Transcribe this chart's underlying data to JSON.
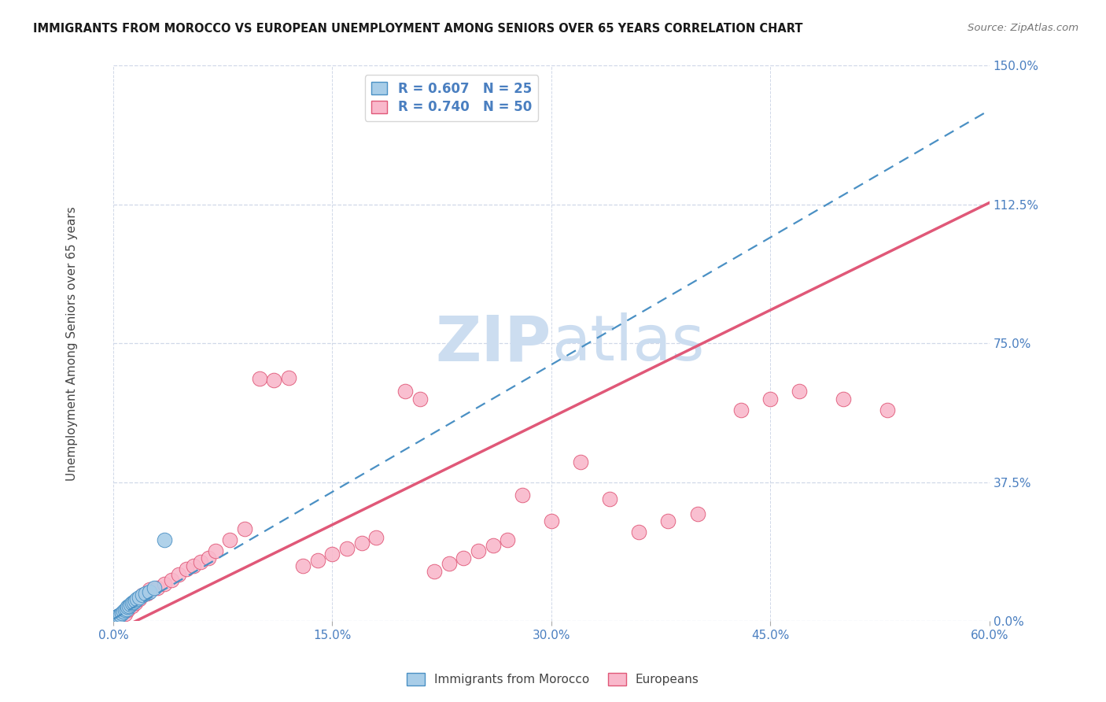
{
  "title": "IMMIGRANTS FROM MOROCCO VS EUROPEAN UNEMPLOYMENT AMONG SENIORS OVER 65 YEARS CORRELATION CHART",
  "source": "Source: ZipAtlas.com",
  "ylabel": "Unemployment Among Seniors over 65 years",
  "x_tick_labels": [
    "0.0%",
    "15.0%",
    "30.0%",
    "45.0%",
    "60.0%"
  ],
  "x_tick_vals": [
    0.0,
    15.0,
    30.0,
    45.0,
    60.0
  ],
  "y_tick_labels": [
    "0.0%",
    "37.5%",
    "75.0%",
    "112.5%",
    "150.0%"
  ],
  "y_tick_vals": [
    0.0,
    37.5,
    75.0,
    112.5,
    150.0
  ],
  "xlim": [
    0.0,
    60.0
  ],
  "ylim": [
    0.0,
    150.0
  ],
  "morocco_color": "#a8cde8",
  "european_color": "#f9b8cb",
  "morocco_edge": "#4a90c4",
  "european_edge": "#e05878",
  "regression_morocco_color": "#4a90c4",
  "regression_european_color": "#e05878",
  "background_color": "#ffffff",
  "grid_color": "#d0d8e8",
  "watermark_color": "#ccddf0",
  "title_color": "#1a1a1a",
  "axis_label_color": "#444444",
  "tick_label_color": "#4a7fc0",
  "source_color": "#777777",
  "morocco_R": "0.607",
  "morocco_N": "25",
  "european_R": "0.740",
  "european_N": "50",
  "reg_morocco_x0": 0.0,
  "reg_morocco_y0": 0.5,
  "reg_morocco_x1": 60.0,
  "reg_morocco_y1": 138.0,
  "reg_european_x0": 0.0,
  "reg_european_y0": -3.0,
  "reg_european_x1": 60.0,
  "reg_european_y1": 113.0,
  "morocco_x": [
    0.1,
    0.15,
    0.2,
    0.25,
    0.3,
    0.35,
    0.4,
    0.5,
    0.6,
    0.7,
    0.8,
    0.9,
    1.0,
    1.1,
    1.2,
    1.3,
    1.4,
    1.5,
    1.6,
    1.8,
    2.0,
    2.2,
    2.5,
    2.8,
    3.5
  ],
  "morocco_y": [
    0.5,
    0.6,
    0.8,
    1.0,
    1.2,
    1.3,
    1.5,
    1.8,
    2.2,
    2.6,
    3.0,
    3.2,
    3.8,
    4.0,
    4.5,
    5.0,
    5.2,
    5.5,
    6.0,
    6.5,
    7.0,
    7.5,
    8.0,
    9.0,
    22.0
  ],
  "european_x": [
    0.3,
    0.5,
    0.8,
    1.0,
    1.3,
    1.5,
    1.8,
    2.0,
    2.3,
    2.5,
    3.0,
    3.5,
    4.0,
    4.5,
    5.0,
    5.5,
    6.0,
    6.5,
    7.0,
    8.0,
    9.0,
    10.0,
    11.0,
    12.0,
    13.0,
    14.0,
    15.0,
    16.0,
    17.0,
    18.0,
    20.0,
    21.0,
    22.0,
    23.0,
    24.0,
    25.0,
    26.0,
    27.0,
    28.0,
    30.0,
    32.0,
    34.0,
    36.0,
    38.0,
    40.0,
    43.0,
    45.0,
    47.0,
    50.0,
    53.0
  ],
  "european_y": [
    1.0,
    1.5,
    2.0,
    3.0,
    4.0,
    5.0,
    6.0,
    7.0,
    7.5,
    8.5,
    9.0,
    10.0,
    11.0,
    12.5,
    14.0,
    15.0,
    16.0,
    17.0,
    19.0,
    22.0,
    25.0,
    65.5,
    65.0,
    65.8,
    15.0,
    16.5,
    18.0,
    19.5,
    21.0,
    22.5,
    62.0,
    60.0,
    13.5,
    15.5,
    17.0,
    19.0,
    20.5,
    22.0,
    34.0,
    27.0,
    43.0,
    33.0,
    24.0,
    27.0,
    29.0,
    57.0,
    60.0,
    62.0,
    60.0,
    57.0
  ]
}
